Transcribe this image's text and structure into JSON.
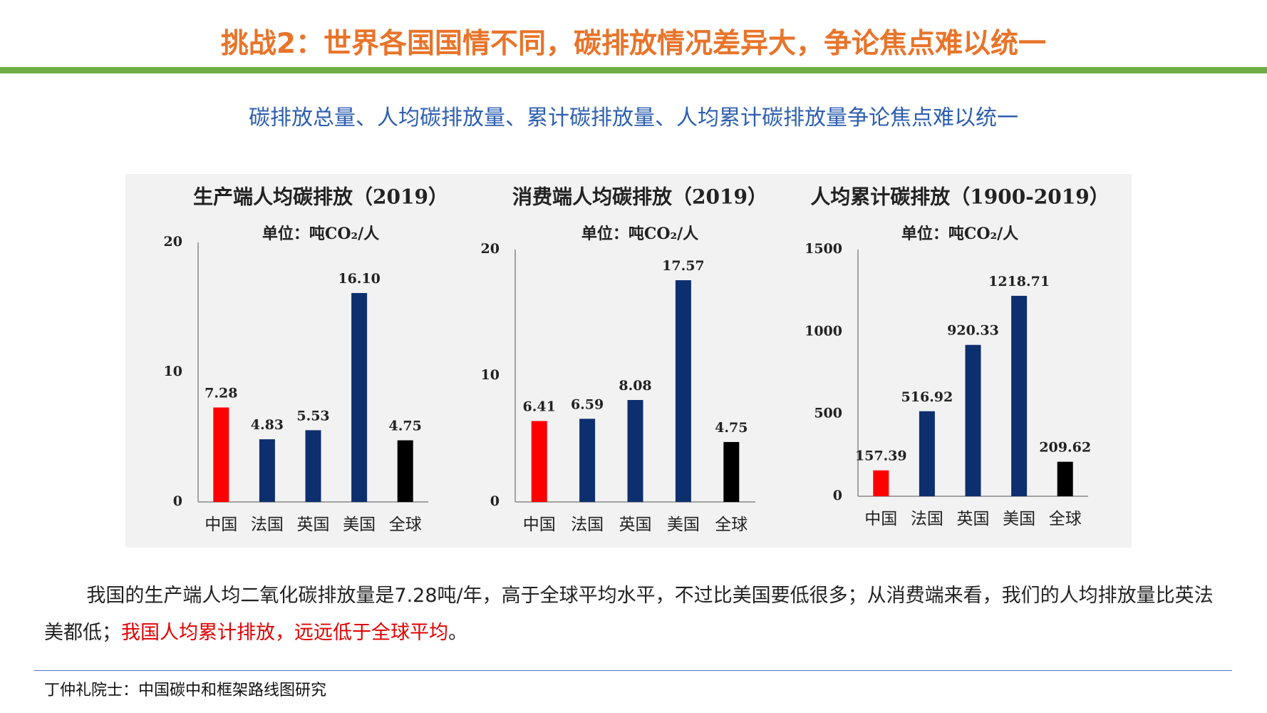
{
  "header": {
    "title": "挑战2：世界各国国情不同，碳排放情况差异大，争论焦点难以统一",
    "subtitle": "碳排放总量、人均碳排放量、累计碳排放量、人均累计碳排放量争论焦点难以统一"
  },
  "chart_data": [
    {
      "type": "bar",
      "title": "生产端人均碳排放（2019）",
      "subtitle": "单位：吨CO₂/人",
      "categories": [
        "中国",
        "法国",
        "英国",
        "美国",
        "全球"
      ],
      "values": [
        7.28,
        4.83,
        5.53,
        16.1,
        4.75
      ],
      "value_labels": [
        "7.28",
        "4.83",
        "5.53",
        "16.10",
        "4.75"
      ],
      "colors": [
        "#ff0000",
        "#0e2f6e",
        "#0e2f6e",
        "#0e2f6e",
        "#000000"
      ],
      "ylim": [
        0,
        20
      ],
      "yticks": [
        0,
        10,
        20
      ],
      "grid": false
    },
    {
      "type": "bar",
      "title": "消费端人均碳排放（2019）",
      "subtitle": "单位：吨CO₂/人",
      "categories": [
        "中国",
        "法国",
        "英国",
        "美国",
        "全球"
      ],
      "values": [
        6.41,
        6.59,
        8.08,
        17.57,
        4.75
      ],
      "value_labels": [
        "6.41",
        "6.59",
        "8.08",
        "17.57",
        "4.75"
      ],
      "colors": [
        "#ff0000",
        "#0e2f6e",
        "#0e2f6e",
        "#0e2f6e",
        "#000000"
      ],
      "ylim": [
        0,
        20
      ],
      "yticks": [
        0,
        10,
        20
      ],
      "grid": false
    },
    {
      "type": "bar",
      "title": "人均累计碳排放（1900-2019）",
      "subtitle": "单位：吨CO₂/人",
      "categories": [
        "中国",
        "法国",
        "英国",
        "美国",
        "全球"
      ],
      "values": [
        157.39,
        516.92,
        920.33,
        1218.71,
        209.62
      ],
      "value_labels": [
        "157.39",
        "516.92",
        "920.33",
        "1218.71",
        "209.62"
      ],
      "colors": [
        "#ff0000",
        "#0e2f6e",
        "#0e2f6e",
        "#0e2f6e",
        "#000000"
      ],
      "ylim": [
        0,
        1500
      ],
      "yticks": [
        0,
        500,
        1000,
        1500
      ],
      "grid": false
    }
  ],
  "paragraph": {
    "parts": [
      "我国的生产端人均二氧化碳排放量是7.28吨/年，高于全球平均水平，不过比美国要低很多；从消费端来看，我们的人均排放量比英法美都低；",
      "我国人均累计排放，远远低于全球平均",
      "。"
    ]
  },
  "footer": "丁仲礼院士：中国碳中和框架路线图研究"
}
